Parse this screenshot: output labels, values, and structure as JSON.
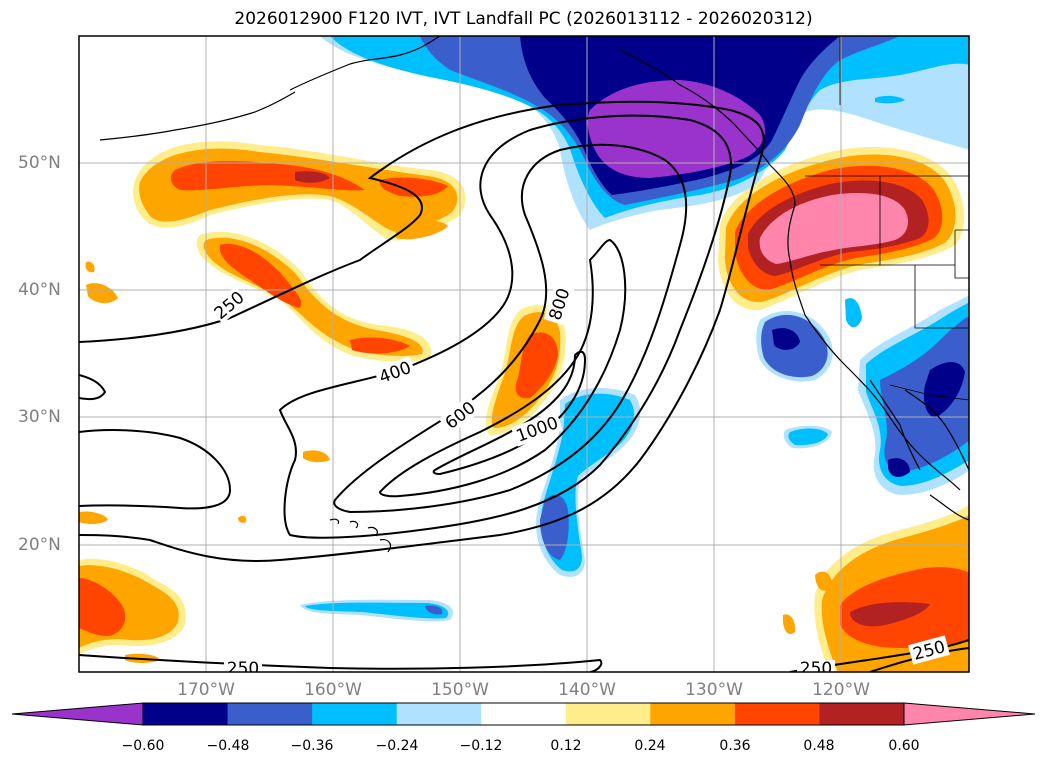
{
  "title": "2026012900 F120 IVT, IVT Landfall PC (2026013112 - 2026020312)",
  "lat_labels": [
    "50°N",
    "40°N",
    "30°N",
    "20°N"
  ],
  "lon_labels": [
    "170°W",
    "160°W",
    "150°W",
    "140°W",
    "130°W",
    "120°W"
  ],
  "contour_labels": [
    "250",
    "400",
    "600",
    "800",
    "1000",
    "250",
    "250",
    "250"
  ],
  "colorbar": {
    "ticks": [
      "−0.60",
      "−0.48",
      "−0.36",
      "−0.24",
      "−0.12",
      "0.12",
      "0.24",
      "0.36",
      "0.48",
      "0.60"
    ],
    "colors": [
      "#9933cc",
      "#00008b",
      "#3a5fcd",
      "#00bfff",
      "#b0e2ff",
      "#ffffff",
      "#ffec8b",
      "#ffa500",
      "#ff4500",
      "#b22222",
      "#ff85ad"
    ]
  },
  "palette": {
    "purple": "#9933cc",
    "navy": "#00008b",
    "blue": "#3a5fcd",
    "sky": "#00bfff",
    "pale_blue": "#b0e2ff",
    "pale_yellow": "#ffec8b",
    "orange": "#ffa500",
    "red_orange": "#ff4500",
    "dark_red": "#b22222",
    "pink": "#ff85ad"
  }
}
